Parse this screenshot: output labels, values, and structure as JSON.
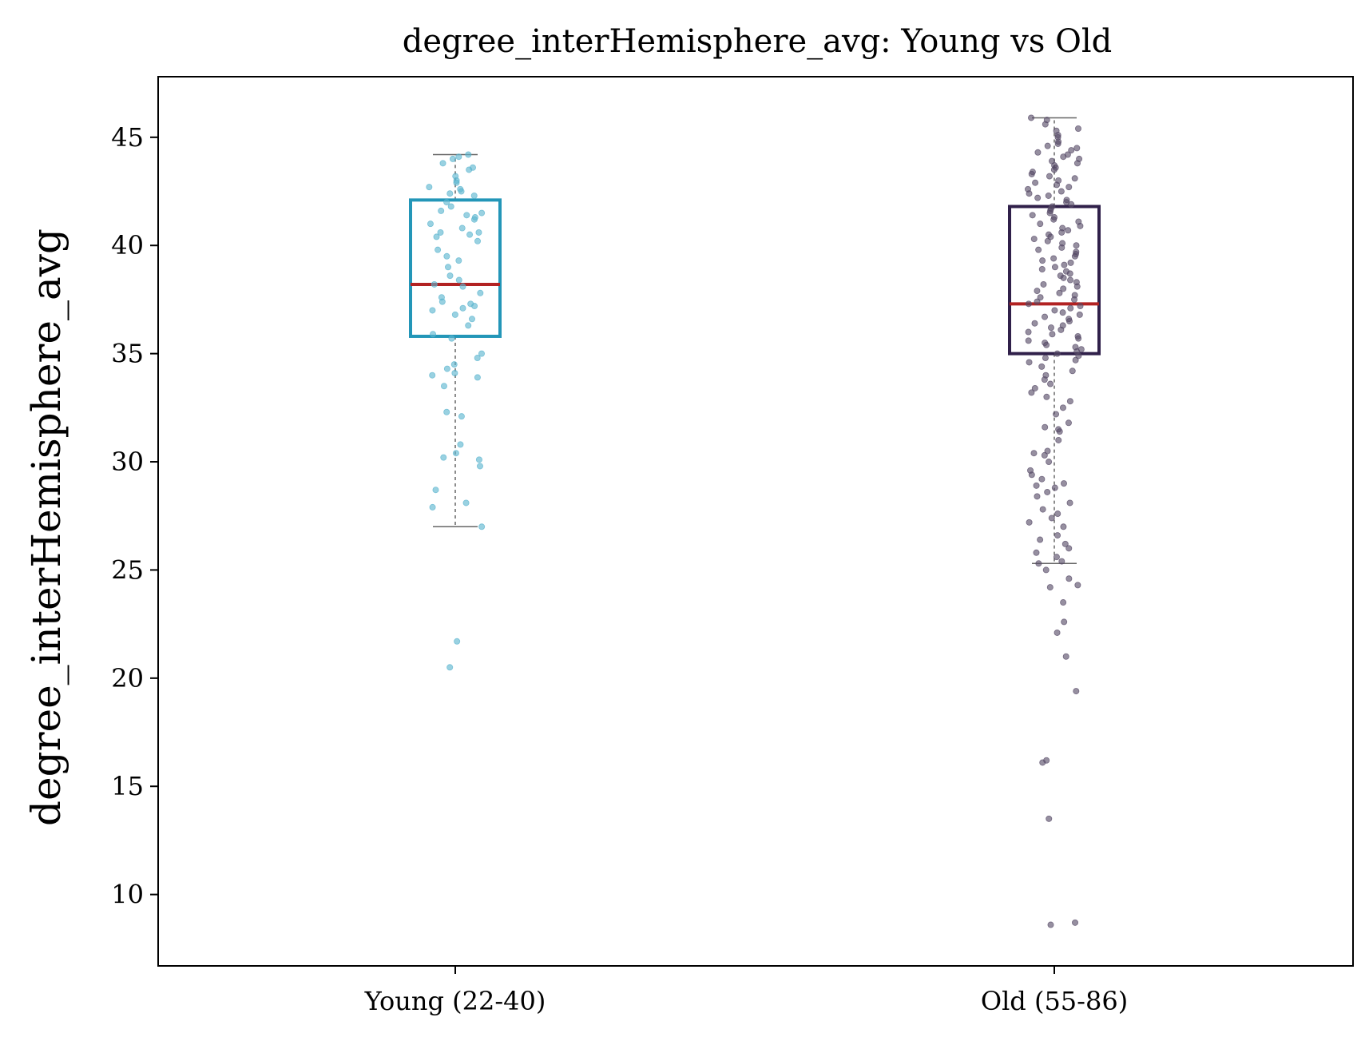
{
  "chart_data": {
    "type": "box",
    "title": "degree_interHemisphere_avg: Young vs Old",
    "xlabel": "",
    "ylabel": "degree_interHemisphere_avg",
    "categories": [
      "Young (22-40)",
      "Old (55-86)"
    ],
    "ylim": [
      6.7,
      47.8
    ],
    "yticks": [
      10,
      15,
      20,
      25,
      30,
      35,
      40,
      45
    ],
    "grid": false,
    "legend": "none",
    "colors": {
      "young_box": "#2396b8",
      "old_box": "#30204a",
      "median": "#b22222",
      "whisker": "#666666",
      "young_points": "#5ab4cf",
      "old_points": "#564a66",
      "axes": "#000000"
    },
    "boxes": [
      {
        "category": "Young (22-40)",
        "q1": 35.8,
        "median": 38.2,
        "q3": 42.1,
        "whisker_low": 27.0,
        "whisker_high": 44.2,
        "points": [
          44.2,
          44.1,
          44.0,
          43.8,
          43.6,
          43.5,
          43.2,
          43.0,
          42.9,
          42.7,
          42.6,
          42.5,
          42.4,
          42.3,
          42.0,
          41.8,
          41.6,
          41.5,
          41.4,
          41.3,
          41.2,
          41.0,
          40.8,
          40.6,
          40.6,
          40.5,
          40.4,
          40.2,
          39.8,
          39.5,
          39.3,
          39.0,
          38.6,
          38.4,
          38.2,
          38.1,
          37.8,
          37.6,
          37.4,
          37.3,
          37.2,
          37.1,
          37.0,
          36.8,
          36.6,
          36.3,
          35.9,
          35.7,
          35.0,
          34.8,
          34.5,
          34.3,
          34.1,
          34.0,
          33.9,
          33.5,
          32.3,
          32.1,
          30.8,
          30.4,
          30.2,
          30.1,
          29.8,
          28.7,
          28.1,
          27.9,
          27.0,
          21.7,
          20.5
        ]
      },
      {
        "category": "Old (55-86)",
        "q1": 35.0,
        "median": 37.3,
        "q3": 41.8,
        "whisker_low": 25.3,
        "whisker_high": 45.9,
        "points": [
          45.9,
          45.8,
          45.6,
          45.4,
          45.3,
          45.1,
          45.0,
          44.8,
          44.7,
          44.6,
          44.5,
          44.4,
          44.3,
          44.2,
          44.1,
          44.0,
          43.9,
          43.8,
          43.7,
          43.6,
          43.5,
          43.4,
          43.3,
          43.2,
          43.1,
          43.0,
          42.9,
          42.8,
          42.7,
          42.6,
          42.5,
          42.4,
          42.3,
          42.2,
          42.1,
          42.0,
          41.9,
          41.8,
          41.7,
          41.6,
          41.5,
          41.4,
          41.3,
          41.2,
          41.1,
          41.0,
          40.9,
          40.8,
          40.7,
          40.6,
          40.5,
          40.4,
          40.3,
          40.2,
          40.1,
          40.0,
          39.9,
          39.8,
          39.7,
          39.6,
          39.5,
          39.4,
          39.3,
          39.2,
          39.1,
          39.0,
          38.9,
          38.8,
          38.7,
          38.6,
          38.5,
          38.4,
          38.3,
          38.2,
          38.1,
          38.0,
          37.9,
          37.8,
          37.7,
          37.6,
          37.5,
          37.4,
          37.3,
          37.2,
          37.1,
          37.0,
          36.9,
          36.8,
          36.7,
          36.6,
          36.5,
          36.4,
          36.3,
          36.2,
          36.1,
          36.0,
          35.9,
          35.8,
          35.7,
          35.6,
          35.5,
          35.4,
          35.3,
          35.2,
          35.1,
          35.0,
          34.9,
          34.8,
          34.7,
          34.6,
          34.4,
          34.2,
          34.0,
          33.8,
          33.6,
          33.4,
          33.2,
          33.0,
          32.8,
          32.5,
          32.2,
          31.8,
          31.6,
          31.5,
          31.4,
          31.0,
          30.5,
          30.4,
          30.3,
          30.0,
          29.6,
          29.4,
          29.2,
          29.0,
          28.9,
          28.8,
          28.6,
          28.4,
          28.1,
          27.8,
          27.6,
          27.4,
          27.2,
          27.0,
          26.6,
          26.4,
          26.2,
          26.0,
          25.8,
          25.6,
          25.4,
          25.3,
          25.0,
          24.6,
          24.3,
          24.2,
          23.5,
          22.6,
          22.1,
          21.0,
          19.4,
          16.2,
          16.1,
          13.5,
          8.7,
          8.6
        ]
      }
    ]
  }
}
